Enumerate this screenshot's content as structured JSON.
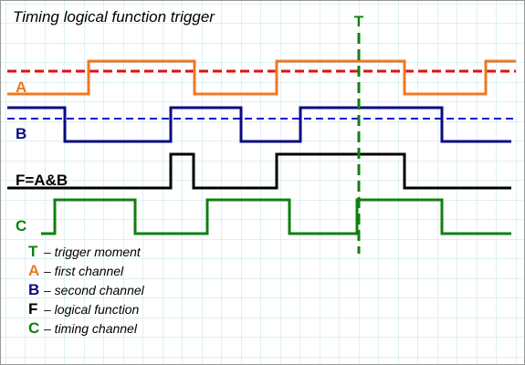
{
  "title": "Timing logical function trigger",
  "trigger_label": "T",
  "signal_labels": {
    "a": "A",
    "b": "B",
    "f": "F=A&B",
    "c": "C"
  },
  "legend": [
    {
      "key": "T",
      "text": "– trigger moment"
    },
    {
      "key": "A",
      "text": "– first channel"
    },
    {
      "key": "B",
      "text": "– second channel"
    },
    {
      "key": "F",
      "text": "– logical function"
    },
    {
      "key": "C",
      "text": "– timing channel"
    }
  ]
}
